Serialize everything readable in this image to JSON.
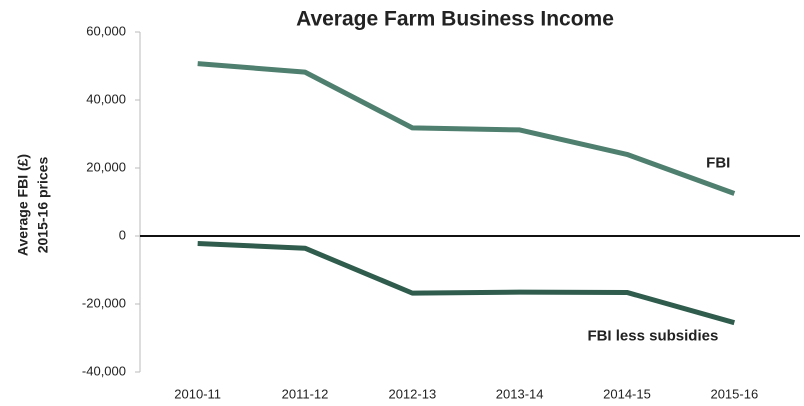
{
  "chart_data": {
    "type": "line",
    "title": "Average Farm Business Income",
    "ylabel": [
      "Average FBI (£)",
      "2015-16 prices"
    ],
    "categories": [
      "2010-11",
      "2011-12",
      "2012-13",
      "2013-14",
      "2014-15",
      "2015-16"
    ],
    "series": [
      {
        "name": "FBI",
        "color": "#4f7f6e",
        "values": [
          50700,
          48200,
          31800,
          31200,
          24000,
          12500
        ]
      },
      {
        "name": "FBI less subsidies",
        "color": "#2f5c4d",
        "values": [
          -2200,
          -3600,
          -16800,
          -16500,
          -16600,
          -25500
        ]
      }
    ],
    "ylim": [
      -40000,
      60000
    ],
    "yticks": [
      {
        "value": -40000,
        "label": "-40,000"
      },
      {
        "value": -20000,
        "label": "-20,000"
      },
      0,
      {
        "value": 20000,
        "label": "20,000"
      },
      {
        "value": 40000,
        "label": "40,000"
      },
      {
        "value": 60000,
        "label": "60,000"
      }
    ],
    "grid": false
  }
}
